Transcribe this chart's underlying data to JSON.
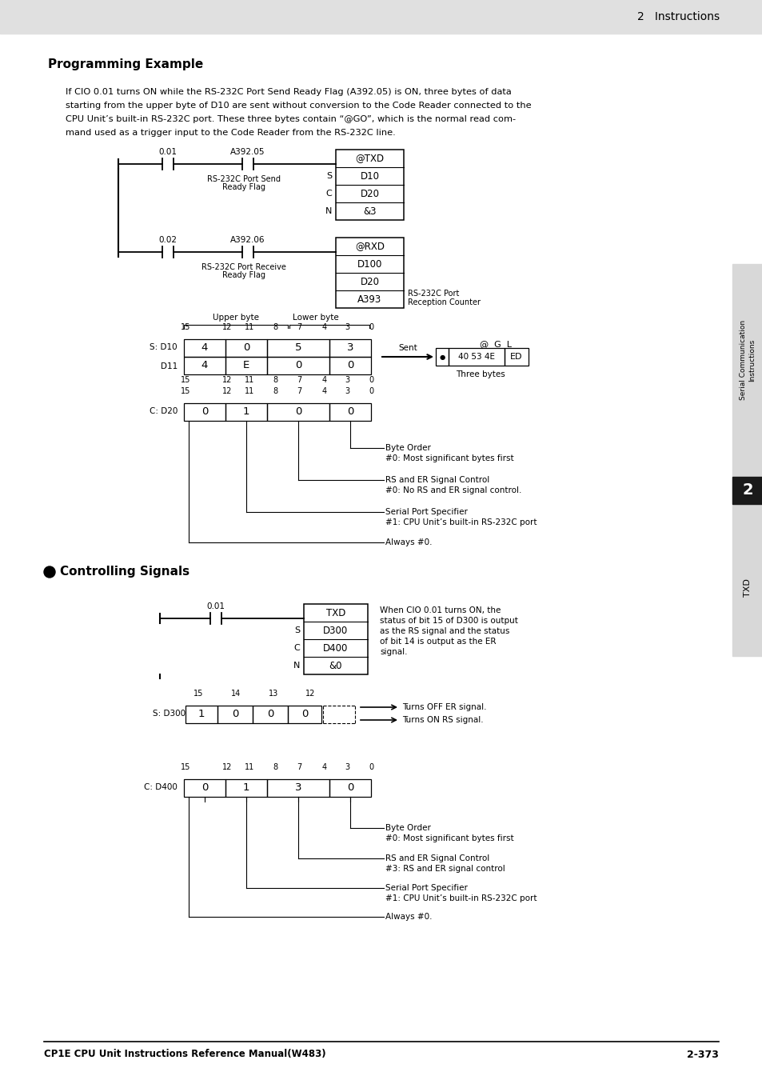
{
  "page_bg": "#ffffff",
  "header_bg": "#e0e0e0",
  "header_text": "2   Instructions",
  "footer_left": "CP1E CPU Unit Instructions Reference Manual(W483)",
  "footer_right": "2-373",
  "section_title": "Programming Example",
  "controlling_title": "Controlling Signals",
  "sidebar_bg": "#e8e8e8",
  "sidebar_dark_bg": "#1a1a1a",
  "body_lines": [
    "If CIO 0.01 turns ON while the RS-232C Port Send Ready Flag (A392.05) is ON, three bytes of data",
    "starting from the upper byte of D10 are sent without conversion to the Code Reader connected to the",
    "CPU Unit’s built-in RS-232C port. These three bytes contain “@GO”, which is the normal read com-",
    "mand used as a trigger input to the Code Reader from the RS-232C line."
  ]
}
